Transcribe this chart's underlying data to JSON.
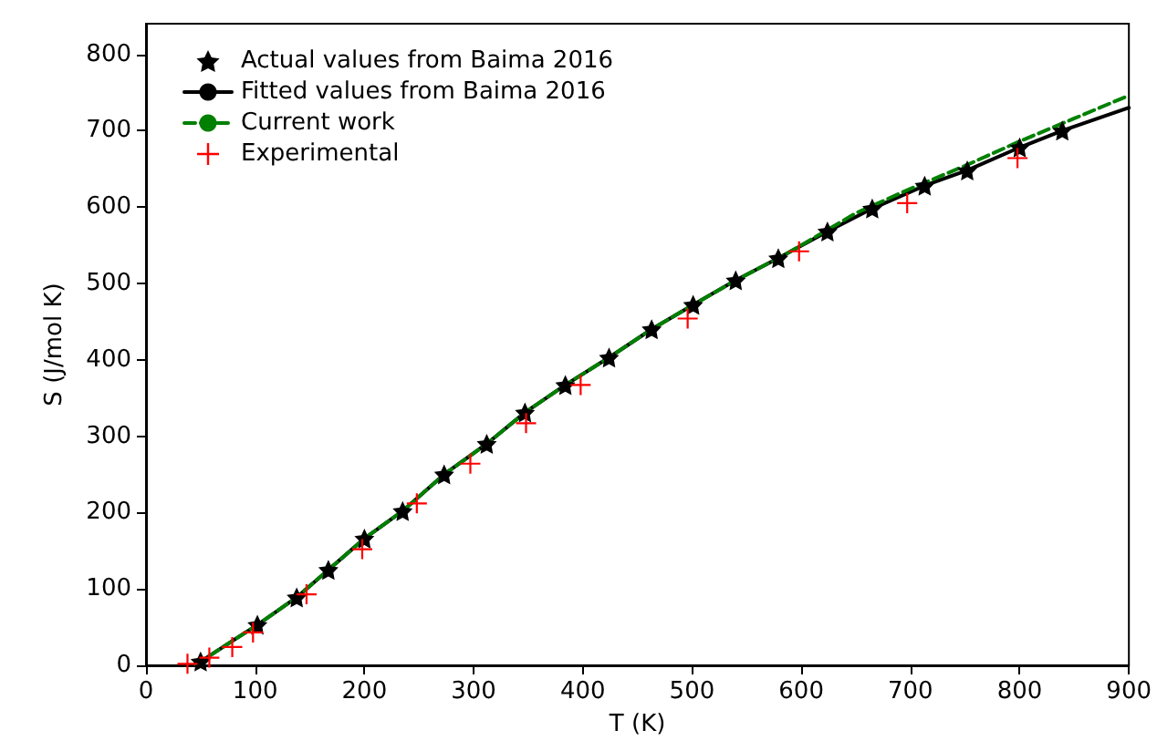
{
  "chart_data": {
    "type": "line",
    "xlabel": "T (K)",
    "ylabel": "S (J/mol K)",
    "xlim": [
      0,
      900
    ],
    "ylim": [
      0,
      840
    ],
    "xticks": [
      0,
      100,
      200,
      300,
      400,
      500,
      600,
      700,
      800,
      900
    ],
    "yticks": [
      0,
      100,
      200,
      300,
      400,
      500,
      600,
      700,
      800
    ],
    "grid": false,
    "legend": "top left",
    "series": [
      {
        "name": "Actual values from Baima 2016",
        "type": "scatter",
        "marker": "star",
        "color": "#000000",
        "x": [
          50,
          102,
          138,
          167,
          200,
          235,
          273,
          312,
          347,
          384,
          424,
          463,
          501,
          540,
          579,
          624,
          665,
          713,
          752,
          800,
          839
        ],
        "values": [
          5,
          53,
          89,
          125,
          166,
          202,
          250,
          290,
          331,
          367,
          403,
          440,
          472,
          504,
          533,
          568,
          598,
          628,
          648,
          678,
          700
        ]
      },
      {
        "name": "Fitted values from Baima 2016",
        "marker": "none",
        "line_style": "solid",
        "color": "#000000",
        "x": [
          45,
          50,
          102,
          138,
          167,
          200,
          235,
          273,
          312,
          347,
          384,
          424,
          463,
          501,
          540,
          579,
          624,
          665,
          713,
          752,
          800,
          839,
          900
        ],
        "values": [
          2,
          5,
          53,
          89,
          125,
          166,
          202,
          250,
          290,
          331,
          367,
          403,
          440,
          472,
          504,
          533,
          568,
          598,
          628,
          648,
          678,
          700,
          730
        ]
      },
      {
        "name": "Current work",
        "marker": "none",
        "line_style": "dashed",
        "color": "#008000",
        "x": [
          45,
          50,
          102,
          138,
          167,
          200,
          235,
          273,
          312,
          347,
          384,
          424,
          463,
          501,
          540,
          579,
          600,
          650,
          700,
          750,
          800,
          850,
          900
        ],
        "values": [
          2,
          5,
          53,
          89,
          125,
          166,
          202,
          250,
          290,
          331,
          367,
          403,
          440,
          472,
          504,
          533,
          550,
          592,
          624,
          654,
          686,
          716,
          746
        ]
      },
      {
        "name": "Experimental",
        "type": "scatter",
        "marker": "cross",
        "color": "#ff0000",
        "x": [
          38,
          58,
          79,
          98,
          147,
          198,
          248,
          297,
          348,
          398,
          496,
          598,
          697,
          798
        ],
        "values": [
          2,
          10,
          24,
          43,
          93,
          152,
          212,
          264,
          317,
          367,
          454,
          542,
          605,
          664
        ]
      }
    ]
  }
}
